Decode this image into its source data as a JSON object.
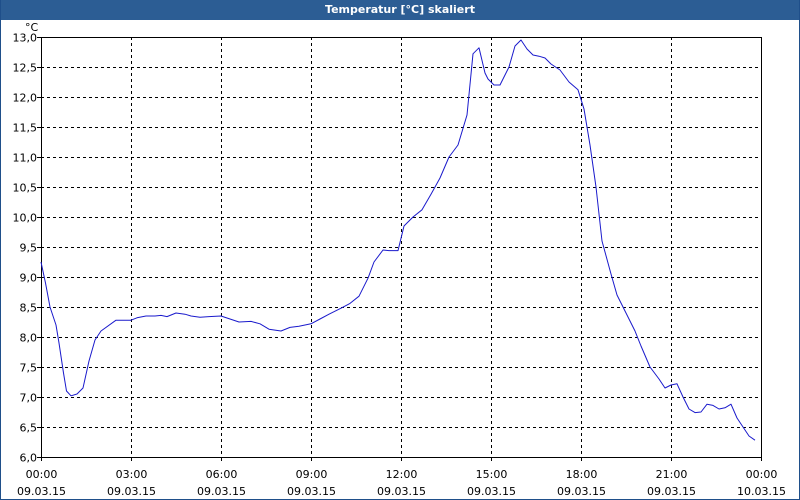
{
  "window": {
    "title": "Temperatur [°C] skaliert"
  },
  "colors": {
    "titlebar": "#2c5d94",
    "line": "#1a1acc",
    "grid": "#000000",
    "frame": "#000000"
  },
  "chart_data": {
    "type": "line",
    "title": "Temperatur [°C] skaliert",
    "ylabel": "°C",
    "xlabel": "",
    "ylim": [
      6.0,
      13.0
    ],
    "xlim": [
      0,
      24
    ],
    "x_unit": "hours since 09.03.15 00:00",
    "grid": true,
    "yticks": [
      6.0,
      6.5,
      7.0,
      7.5,
      8.0,
      8.5,
      9.0,
      9.5,
      10.0,
      10.5,
      11.0,
      11.5,
      12.0,
      12.5,
      13.0
    ],
    "ytick_labels": [
      "6,0",
      "6,5",
      "7,0",
      "7,5",
      "8,0",
      "8,5",
      "9,0",
      "9,5",
      "10,0",
      "10,5",
      "11,0",
      "11,5",
      "12,0",
      "12,5",
      "13,0"
    ],
    "xticks": [
      0,
      3,
      6,
      9,
      12,
      15,
      18,
      21,
      24
    ],
    "xtick_labels": [
      {
        "time": "00:00",
        "date": "09.03.15"
      },
      {
        "time": "03:00",
        "date": "09.03.15"
      },
      {
        "time": "06:00",
        "date": "09.03.15"
      },
      {
        "time": "09:00",
        "date": "09.03.15"
      },
      {
        "time": "12:00",
        "date": "09.03.15"
      },
      {
        "time": "15:00",
        "date": "09.03.15"
      },
      {
        "time": "18:00",
        "date": "09.03.15"
      },
      {
        "time": "21:00",
        "date": "09.03.15"
      },
      {
        "time": "00:00",
        "date": "10.03.15"
      }
    ],
    "series": [
      {
        "x": [
          0.0,
          0.15,
          0.3,
          0.5,
          0.6,
          0.75,
          0.85,
          1.0,
          1.2,
          1.4,
          1.6,
          1.8,
          2.0,
          2.5,
          3.0,
          3.2,
          3.5,
          3.8,
          4.0,
          4.2,
          4.5,
          4.8,
          5.0,
          5.3,
          5.6,
          6.0,
          6.3,
          6.6,
          7.0,
          7.3,
          7.6,
          8.0,
          8.3,
          8.6,
          9.0,
          9.3,
          9.6,
          10.0,
          10.3,
          10.6,
          10.9,
          11.1,
          11.4,
          11.6,
          11.9,
          12.1,
          12.4,
          12.7,
          13.0,
          13.3,
          13.6,
          13.9,
          14.2,
          14.4,
          14.6,
          14.8,
          14.9,
          15.1,
          15.3,
          15.6,
          15.8,
          16.0,
          16.2,
          16.4,
          16.6,
          16.8,
          17.0,
          17.3,
          17.6,
          17.9,
          18.1,
          18.3,
          18.5,
          18.7,
          19.0,
          19.2,
          19.5,
          19.8,
          20.0,
          20.3,
          20.6,
          20.8,
          21.0,
          21.2,
          21.4,
          21.6,
          21.8,
          22.0,
          22.2,
          22.4,
          22.6,
          22.8,
          23.0,
          23.2,
          23.4,
          23.6,
          23.8
        ],
        "y": [
          9.25,
          8.9,
          8.5,
          8.2,
          7.9,
          7.4,
          7.1,
          7.02,
          7.05,
          7.15,
          7.6,
          7.95,
          8.1,
          8.28,
          8.28,
          8.32,
          8.35,
          8.35,
          8.36,
          8.34,
          8.4,
          8.38,
          8.35,
          8.33,
          8.34,
          8.35,
          8.3,
          8.25,
          8.26,
          8.22,
          8.13,
          8.1,
          8.16,
          8.18,
          8.22,
          8.3,
          8.38,
          8.48,
          8.56,
          8.68,
          8.98,
          9.25,
          9.45,
          9.44,
          9.44,
          9.85,
          10.0,
          10.12,
          10.38,
          10.65,
          11.0,
          11.2,
          11.7,
          12.72,
          12.82,
          12.4,
          12.3,
          12.2,
          12.2,
          12.5,
          12.85,
          12.95,
          12.8,
          12.7,
          12.68,
          12.65,
          12.55,
          12.45,
          12.25,
          12.12,
          11.8,
          11.2,
          10.5,
          9.6,
          9.05,
          8.7,
          8.4,
          8.1,
          7.85,
          7.5,
          7.3,
          7.15,
          7.2,
          7.22,
          7.0,
          6.8,
          6.74,
          6.75,
          6.88,
          6.86,
          6.8,
          6.82,
          6.88,
          6.65,
          6.5,
          6.35,
          6.28
        ]
      }
    ]
  }
}
